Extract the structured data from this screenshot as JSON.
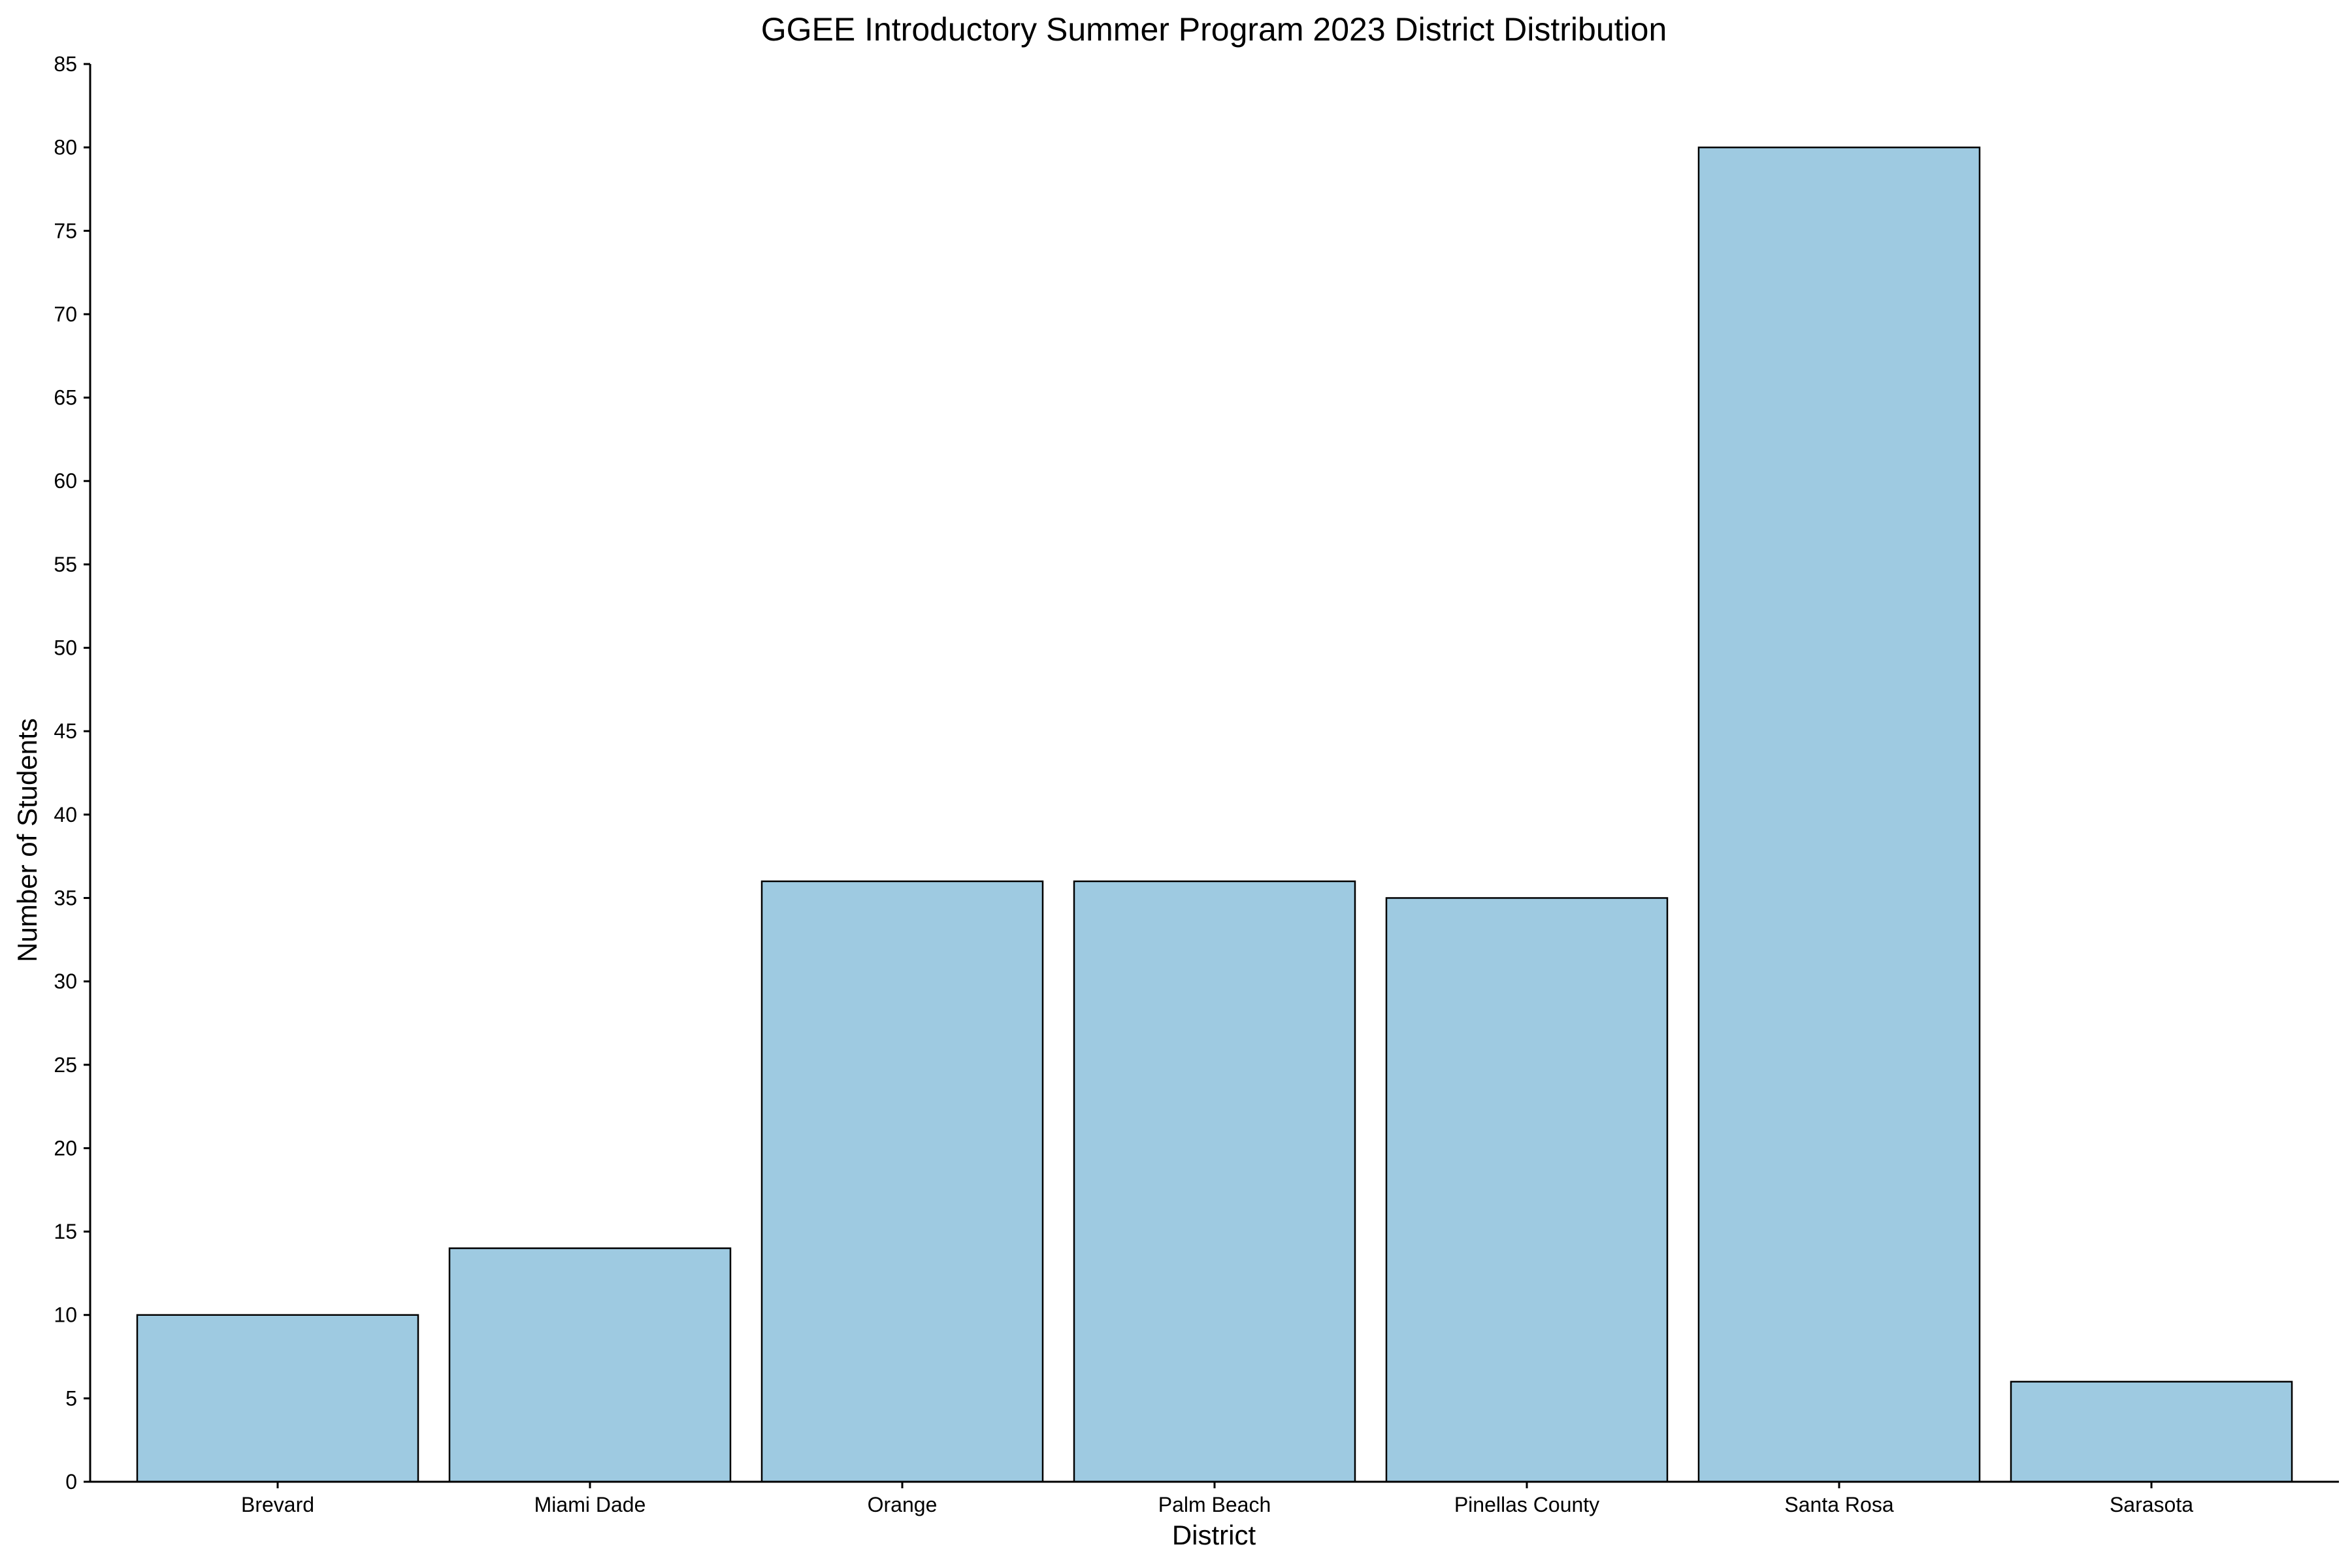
{
  "chart_data": {
    "type": "bar",
    "title": "GGEE Introductory Summer Program 2023 District Distribution",
    "xlabel": "District",
    "ylabel": "Number of Students",
    "categories": [
      "Brevard",
      "Miami Dade",
      "Orange",
      "Palm Beach",
      "Pinellas County",
      "Santa Rosa",
      "Sarasota"
    ],
    "values": [
      10,
      14,
      36,
      36,
      35,
      80,
      6
    ],
    "ylim": [
      0,
      85
    ],
    "yticks": [
      "0",
      "5",
      "10",
      "15",
      "20",
      "25",
      "30",
      "35",
      "40",
      "45",
      "50",
      "55",
      "60",
      "65",
      "70",
      "75",
      "80",
      "85"
    ],
    "bar_color": "#9ecae1",
    "grid": false,
    "legend": "none"
  }
}
